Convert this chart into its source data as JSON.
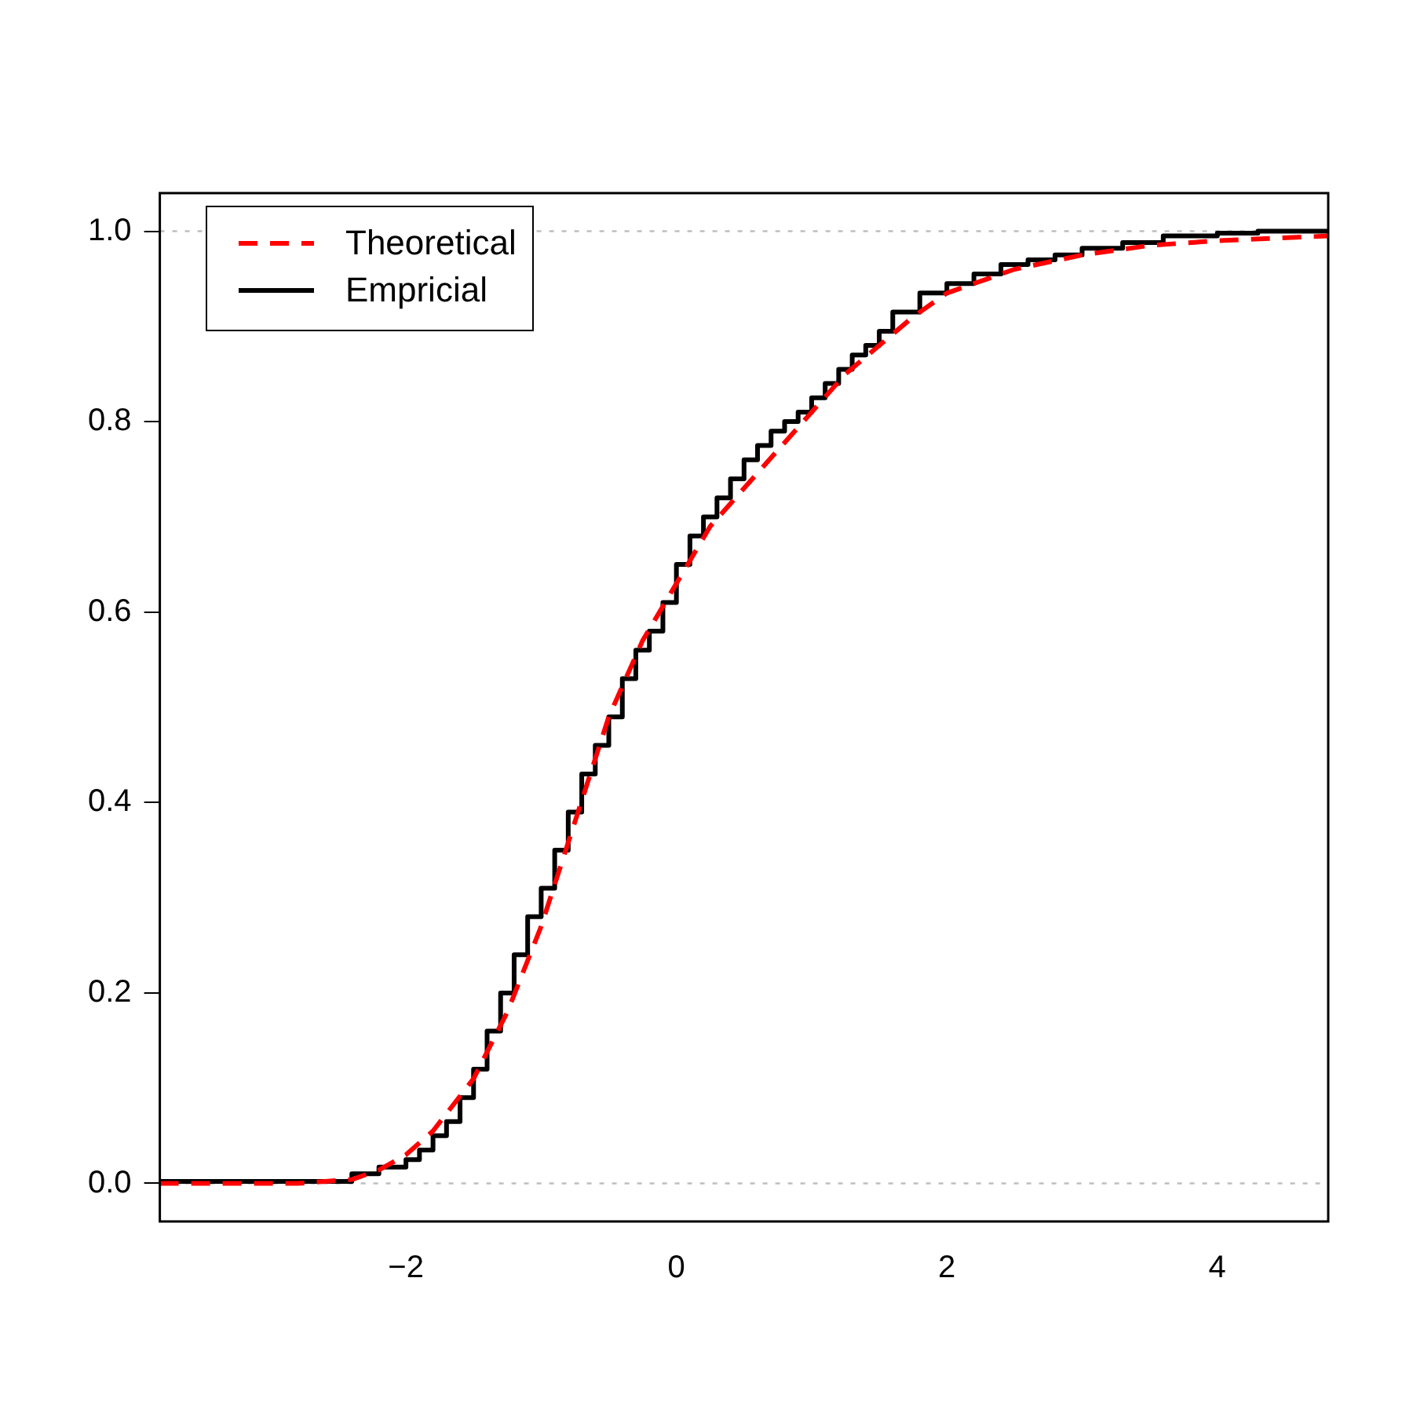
{
  "chart_data": {
    "type": "line",
    "xlim": [
      -3.82,
      4.82
    ],
    "ylim": [
      -0.04,
      1.04
    ],
    "xticks": [
      -2,
      0,
      2,
      4
    ],
    "yticks": [
      {
        "value": 0,
        "label": "0.0"
      },
      {
        "value": 0.2,
        "label": "0.2"
      },
      {
        "value": 0.4,
        "label": "0.4"
      },
      {
        "value": 0.6,
        "label": "0.6"
      },
      {
        "value": 0.8,
        "label": "0.8"
      },
      {
        "value": 1,
        "label": "1.0"
      }
    ],
    "grid": false,
    "legend": "top left",
    "ref_lines": [
      {
        "axis": "y",
        "value": 0,
        "color": "#bebebe",
        "line_style": "dotted"
      },
      {
        "axis": "y",
        "value": 1,
        "color": "#bebebe",
        "line_style": "dotted"
      }
    ],
    "series": [
      {
        "name": "Theoretical",
        "type": "line",
        "color": "#ff0000",
        "line_style": "dashed",
        "x": [
          -3.82,
          -2.8,
          -2.4,
          -2.2,
          -2,
          -1.8,
          -1.5,
          -1.25,
          -1,
          -0.75,
          -0.5,
          -0.25,
          0,
          0.25,
          0.5,
          0.75,
          1,
          1.25,
          1.5,
          1.75,
          2,
          2.5,
          3,
          3.5,
          4,
          4.82
        ],
        "values": [
          0,
          0,
          0.004,
          0.014,
          0.03,
          0.055,
          0.11,
          0.18,
          0.27,
          0.38,
          0.49,
          0.57,
          0.63,
          0.69,
          0.73,
          0.77,
          0.81,
          0.85,
          0.88,
          0.91,
          0.935,
          0.96,
          0.975,
          0.985,
          0.99,
          0.995
        ]
      },
      {
        "name": "Empricial",
        "type": "step",
        "color": "#000000",
        "line_style": "solid",
        "x": [
          -3.82,
          -2.4,
          -2.2,
          -2,
          -1.9,
          -1.8,
          -1.7,
          -1.6,
          -1.5,
          -1.4,
          -1.3,
          -1.2,
          -1.1,
          -1,
          -0.9,
          -0.8,
          -0.7,
          -0.6,
          -0.5,
          -0.4,
          -0.3,
          -0.2,
          -0.1,
          0,
          0.1,
          0.2,
          0.3,
          0.4,
          0.5,
          0.6,
          0.7,
          0.8,
          0.9,
          1,
          1.1,
          1.2,
          1.3,
          1.4,
          1.5,
          1.6,
          1.8,
          2,
          2.2,
          2.4,
          2.6,
          2.8,
          3,
          3.3,
          3.6,
          4,
          4.3,
          4.82
        ],
        "values": [
          0,
          0.002,
          0.01,
          0.017,
          0.025,
          0.035,
          0.05,
          0.065,
          0.09,
          0.12,
          0.16,
          0.2,
          0.24,
          0.28,
          0.31,
          0.35,
          0.39,
          0.43,
          0.46,
          0.49,
          0.53,
          0.56,
          0.58,
          0.61,
          0.65,
          0.68,
          0.7,
          0.72,
          0.74,
          0.76,
          0.775,
          0.79,
          0.8,
          0.81,
          0.825,
          0.84,
          0.855,
          0.87,
          0.88,
          0.895,
          0.915,
          0.935,
          0.945,
          0.955,
          0.965,
          0.97,
          0.975,
          0.982,
          0.988,
          0.995,
          0.998,
          1
        ]
      }
    ]
  }
}
